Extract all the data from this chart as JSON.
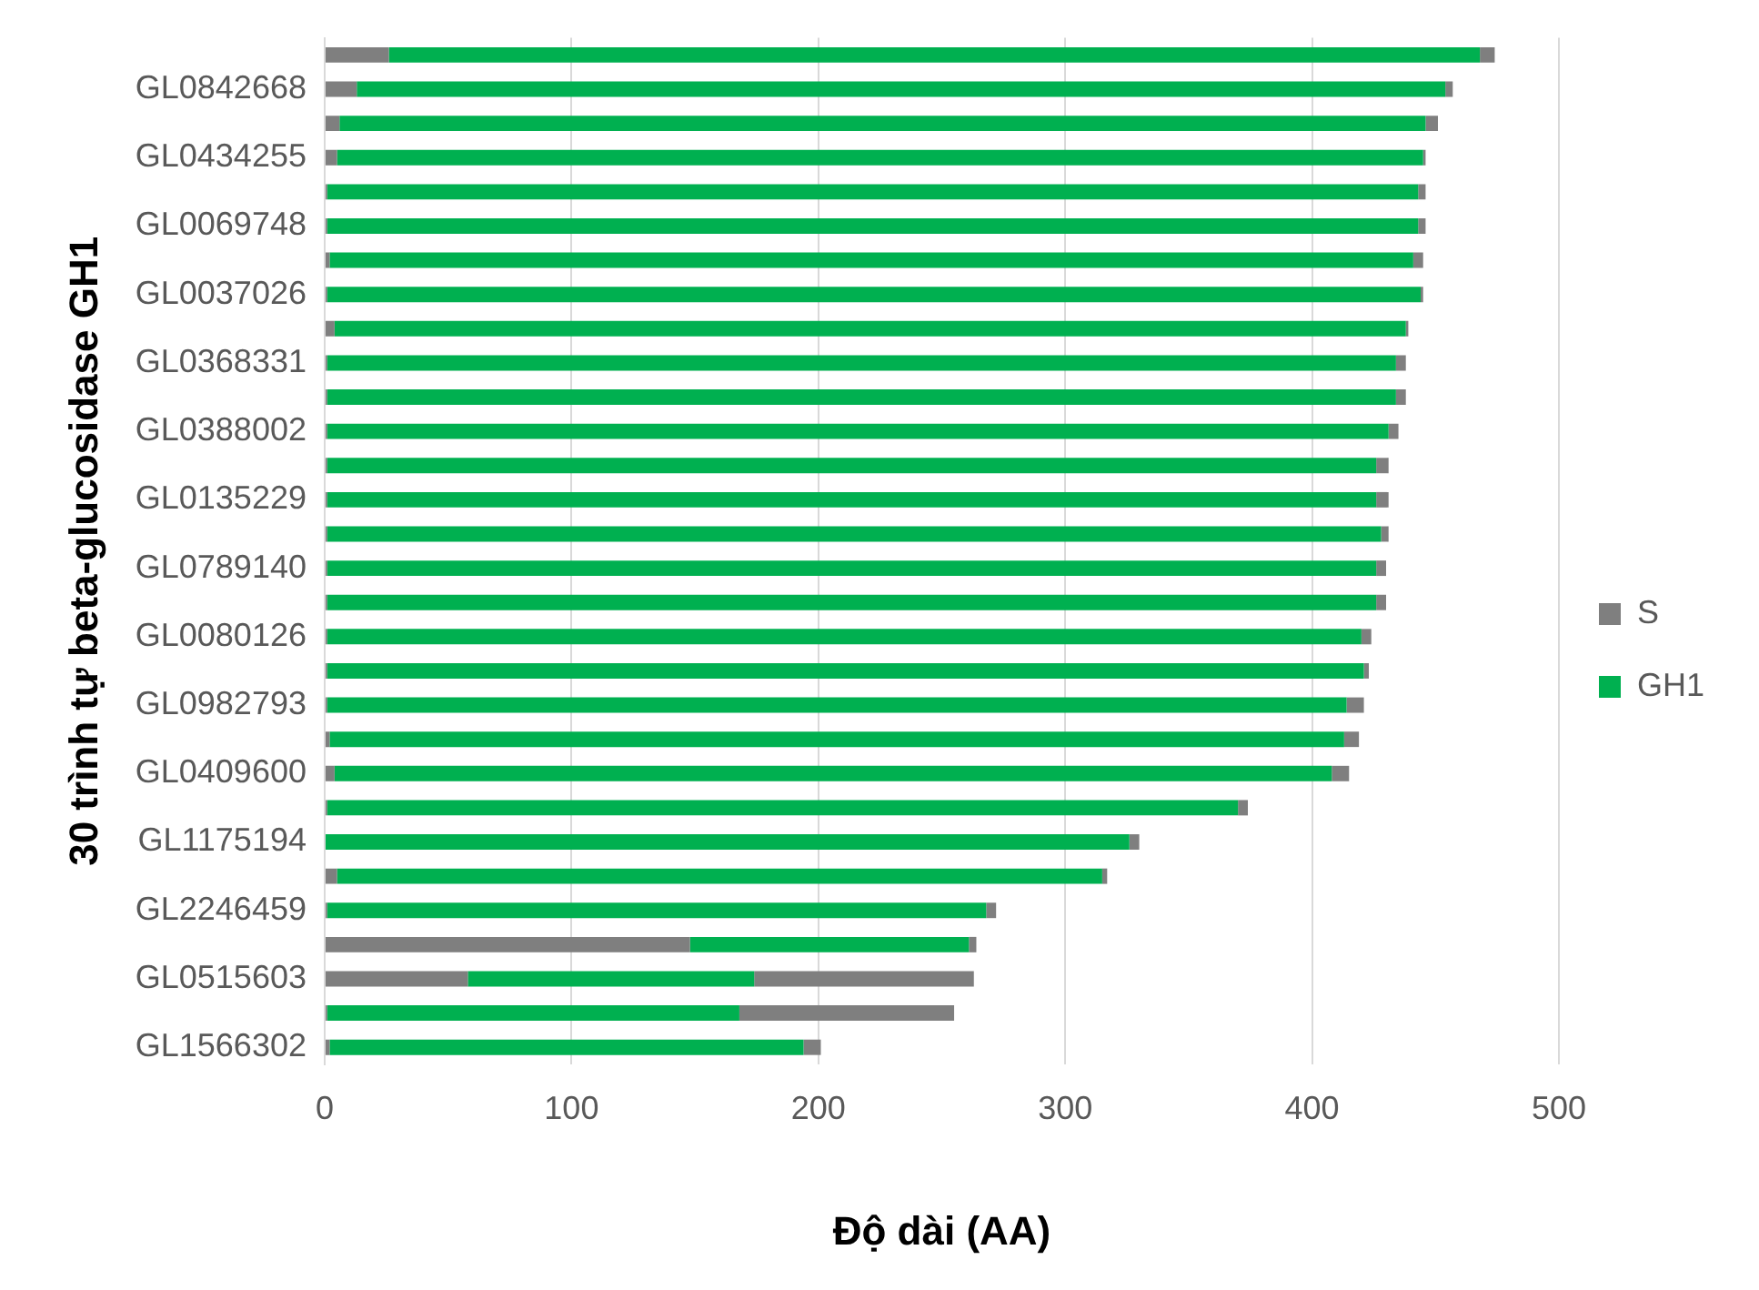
{
  "chart_data": {
    "type": "bar",
    "orientation": "horizontal",
    "stacked": true,
    "xlabel": "Độ dài (AA)",
    "ylabel": "30 trình tự beta-glucosidase GH1",
    "categories": [
      null,
      "GL0842668",
      null,
      "GL0434255",
      null,
      "GL0069748",
      null,
      "GL0037026",
      null,
      "GL0368331",
      null,
      "GL0388002",
      null,
      "GL0135229",
      null,
      "GL0789140",
      null,
      "GL0080126",
      null,
      "GL0982793",
      null,
      "GL0409600",
      null,
      "GL1175194",
      null,
      "GL2246459",
      null,
      "GL0515603",
      null,
      "GL1566302"
    ],
    "series": [
      {
        "name": "S",
        "color": "#7f7f7f",
        "values": [
          26,
          13,
          6,
          5,
          1,
          1,
          2,
          1,
          4,
          1,
          1,
          1,
          1,
          1,
          1,
          1,
          1,
          1,
          1,
          1,
          2,
          4,
          1,
          0,
          5,
          1,
          148,
          58,
          1,
          2
        ]
      },
      {
        "name": "GH1",
        "color": "#00b050",
        "values": [
          442,
          441,
          440,
          440,
          442,
          442,
          439,
          443,
          434,
          433,
          433,
          430,
          425,
          425,
          427,
          425,
          425,
          419,
          420,
          413,
          411,
          404,
          369,
          326,
          310,
          267,
          113,
          116,
          167,
          192
        ]
      },
      {
        "color": "#7f7f7f",
        "values": [
          6,
          3,
          5,
          1,
          3,
          3,
          4,
          1,
          1,
          4,
          4,
          4,
          5,
          5,
          3,
          4,
          4,
          4,
          2,
          7,
          6,
          7,
          4,
          4,
          2,
          4,
          3,
          89,
          87,
          7
        ]
      }
    ],
    "xlim": [
      0,
      500
    ],
    "xticks": [
      0,
      100,
      200,
      300,
      400,
      500
    ],
    "grid": "x",
    "legend": "right"
  }
}
